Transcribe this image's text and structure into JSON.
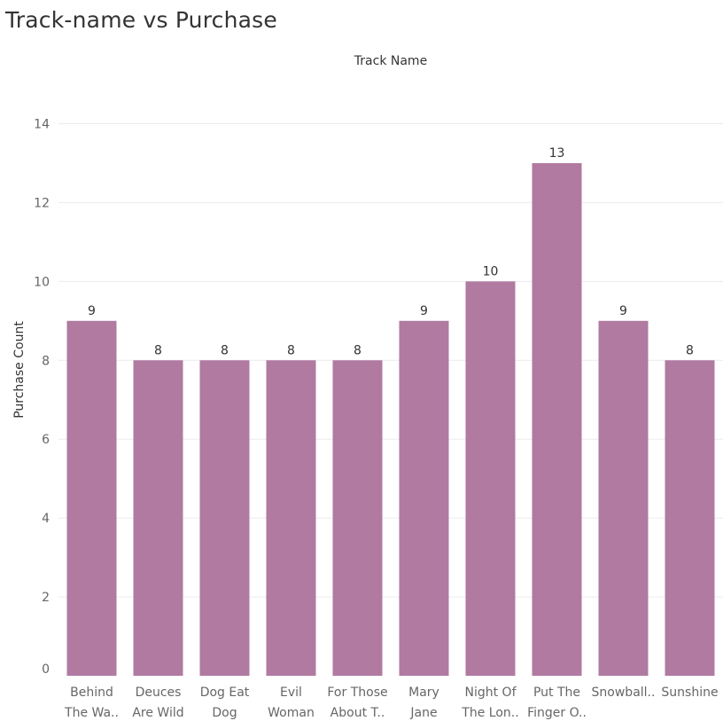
{
  "chart_data": {
    "type": "bar",
    "title": "Track-name vs Purchase",
    "xlabel": "Track Name",
    "ylabel": "Purchase Count",
    "ylim": [
      0,
      15
    ],
    "yticks": [
      0,
      2,
      4,
      6,
      8,
      10,
      12,
      14
    ],
    "grid": true,
    "bar_color": "#b07aa1",
    "categories": [
      [
        "Behind",
        "The Wa.."
      ],
      [
        "Deuces",
        "Are Wild"
      ],
      [
        "Dog Eat",
        "Dog"
      ],
      [
        "Evil",
        "Woman"
      ],
      [
        "For Those",
        "About T.."
      ],
      [
        "Mary",
        "Jane"
      ],
      [
        "Night Of",
        "The Lon.."
      ],
      [
        "Put The",
        "Finger O.."
      ],
      [
        "Snowball..",
        ""
      ],
      [
        "Sunshine",
        ""
      ]
    ],
    "values": [
      9,
      8,
      8,
      8,
      8,
      9,
      10,
      13,
      9,
      8
    ]
  }
}
